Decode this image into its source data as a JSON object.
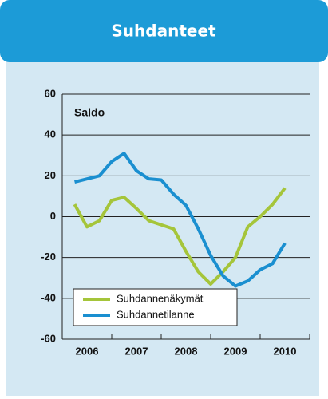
{
  "header": {
    "title": "Suhdanteet"
  },
  "chart_data": {
    "type": "line",
    "annotation": "Saldo",
    "x": [
      2006.25,
      2006.5,
      2006.75,
      2007,
      2007.25,
      2007.5,
      2007.75,
      2008,
      2008.25,
      2008.5,
      2008.75,
      2009,
      2009.25,
      2009.5,
      2009.75,
      2010,
      2010.25,
      2010.5
    ],
    "series": [
      {
        "name": "Suhdannenäkymät",
        "color": "#a5c53a",
        "values": [
          6,
          -5,
          -2,
          8,
          9.5,
          4,
          -2,
          -4,
          -6,
          -17,
          -27,
          -33,
          -27,
          -20,
          -5,
          0,
          6,
          14
        ]
      },
      {
        "name": "Suhdannetilanne",
        "color": "#1a8fd0",
        "values": [
          17,
          18.5,
          20,
          27,
          31,
          22.5,
          18.5,
          18,
          11,
          5.5,
          -6,
          -19,
          -29,
          -34,
          -31.5,
          -26,
          -23,
          -13
        ]
      }
    ],
    "xlim": [
      2006,
      2011
    ],
    "xticks": [
      {
        "value": 2006.5,
        "label": "2006"
      },
      {
        "value": 2007.5,
        "label": "2007"
      },
      {
        "value": 2008.5,
        "label": "2008"
      },
      {
        "value": 2009.5,
        "label": "2009"
      },
      {
        "value": 2010.5,
        "label": "2010"
      }
    ],
    "xminorticks": [
      2006,
      2007,
      2008,
      2009,
      2010,
      2011
    ],
    "ylim": [
      -60,
      60
    ],
    "yticks": [
      -60,
      -40,
      -20,
      0,
      20,
      40,
      60
    ],
    "grid": true,
    "legend": "lower left"
  }
}
